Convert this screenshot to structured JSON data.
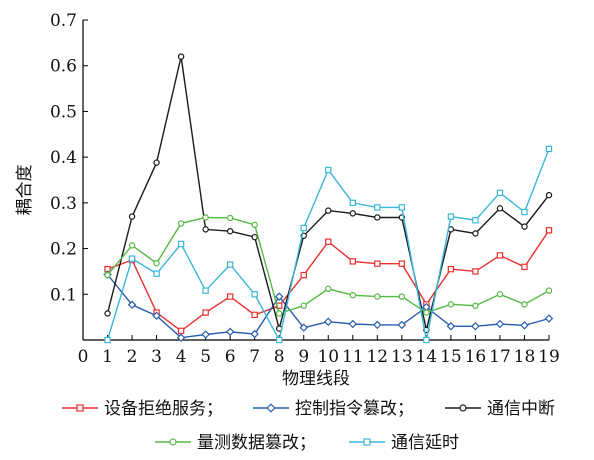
{
  "chart_data": {
    "type": "line",
    "xlabel": "物理线段",
    "ylabel": "耦合度",
    "x": [
      1,
      2,
      3,
      4,
      5,
      6,
      7,
      8,
      9,
      10,
      11,
      12,
      13,
      14,
      15,
      16,
      17,
      18,
      19
    ],
    "xticks": [
      "0",
      "1",
      "2",
      "3",
      "4",
      "5",
      "6",
      "7",
      "8",
      "9",
      "10",
      "11",
      "12",
      "13",
      "14",
      "15",
      "16",
      "17",
      "18",
      "19"
    ],
    "yticks": [
      "0.1",
      "0.2",
      "0.3",
      "0.4",
      "0.5",
      "0.6",
      "0.7"
    ],
    "xlim": [
      0,
      19
    ],
    "ylim": [
      0,
      0.7
    ],
    "grid": false,
    "legend_placement": "bottom",
    "series": [
      {
        "name": "设备拒绝服务；",
        "color": "#e8312f",
        "marker": "square",
        "values": [
          0.155,
          0.175,
          0.06,
          0.02,
          0.06,
          0.095,
          0.055,
          0.075,
          0.142,
          0.215,
          0.172,
          0.167,
          0.167,
          0.078,
          0.155,
          0.15,
          0.185,
          0.16,
          0.24
        ]
      },
      {
        "name": "控制指令篡改；",
        "color": "#2a5db0",
        "marker": "diamond",
        "values": [
          0.143,
          0.077,
          0.053,
          0.005,
          0.012,
          0.018,
          0.013,
          0.095,
          0.027,
          0.04,
          0.035,
          0.033,
          0.033,
          0.072,
          0.03,
          0.03,
          0.035,
          0.032,
          0.047
        ]
      },
      {
        "name": "通信中断",
        "color": "#1a1a1a",
        "marker": "circle",
        "values": [
          0.058,
          0.27,
          0.388,
          0.62,
          0.242,
          0.238,
          0.225,
          0.025,
          0.228,
          0.283,
          0.277,
          0.268,
          0.268,
          0.022,
          0.242,
          0.233,
          0.288,
          0.248,
          0.317
        ]
      },
      {
        "name": "量测数据篡改；",
        "color": "#56b845",
        "marker": "circle",
        "values": [
          0.142,
          0.207,
          0.168,
          0.255,
          0.268,
          0.267,
          0.252,
          0.058,
          0.075,
          0.112,
          0.098,
          0.095,
          0.095,
          0.06,
          0.078,
          0.075,
          0.1,
          0.078,
          0.108
        ]
      },
      {
        "name": "通信延时",
        "color": "#3cb6d8",
        "marker": "square",
        "values": [
          0.0,
          0.178,
          0.145,
          0.21,
          0.108,
          0.165,
          0.1,
          0.0,
          0.245,
          0.372,
          0.3,
          0.29,
          0.29,
          0.0,
          0.27,
          0.262,
          0.322,
          0.28,
          0.418
        ]
      }
    ]
  }
}
